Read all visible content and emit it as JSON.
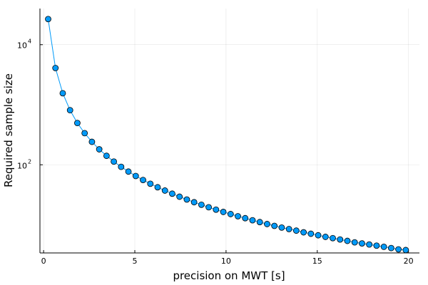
{
  "chart_data": {
    "type": "scatter",
    "title": "",
    "xlabel": "precision on MWT [s]",
    "ylabel": "Required sample size",
    "xlim": [
      -0.2,
      20.6
    ],
    "ylim": [
      3.4,
      40000
    ],
    "yscale": "log10",
    "grid": true,
    "legend": "none",
    "connect_points": true,
    "x_ticks": [
      0,
      5,
      10,
      15,
      20
    ],
    "x_tick_labels": [
      "0",
      "5",
      "10",
      "15",
      "20"
    ],
    "y_ticks": [
      100,
      10000
    ],
    "y_tick_labels": [
      {
        "base": "10",
        "exp": "2"
      },
      {
        "base": "10",
        "exp": "4"
      }
    ],
    "series": [
      {
        "color": "#009AF9",
        "marker": "circle",
        "x": [
          0.25,
          0.65,
          1.05,
          1.45,
          1.85,
          2.25,
          2.65,
          3.05,
          3.45,
          3.85,
          4.25,
          4.65,
          5.05,
          5.45,
          5.85,
          6.25,
          6.65,
          7.05,
          7.45,
          7.85,
          8.25,
          8.65,
          9.05,
          9.45,
          9.85,
          10.25,
          10.65,
          11.05,
          11.45,
          11.85,
          12.25,
          12.65,
          13.05,
          13.45,
          13.85,
          14.25,
          14.65,
          15.05,
          15.45,
          15.85,
          16.25,
          16.65,
          17.05,
          17.45,
          17.85,
          18.25,
          18.65,
          19.05,
          19.45,
          19.85
        ],
        "y": [
          26726,
          4088,
          1555,
          811,
          496,
          336,
          241,
          181,
          141,
          113,
          92.4,
          77.0,
          65.1,
          55.8,
          48.3,
          42.2,
          37.2,
          33.0,
          29.4,
          26.4,
          23.8,
          21.6,
          19.6,
          17.9,
          16.4,
          15.1,
          13.9,
          12.9,
          11.9,
          11.1,
          10.3,
          9.6,
          9.0,
          8.5,
          8.0,
          7.5,
          7.1,
          6.7,
          6.3,
          6.0,
          5.7,
          5.4,
          5.1,
          4.9,
          4.7,
          4.5,
          4.3,
          4.1,
          3.9,
          3.8
        ]
      }
    ]
  }
}
